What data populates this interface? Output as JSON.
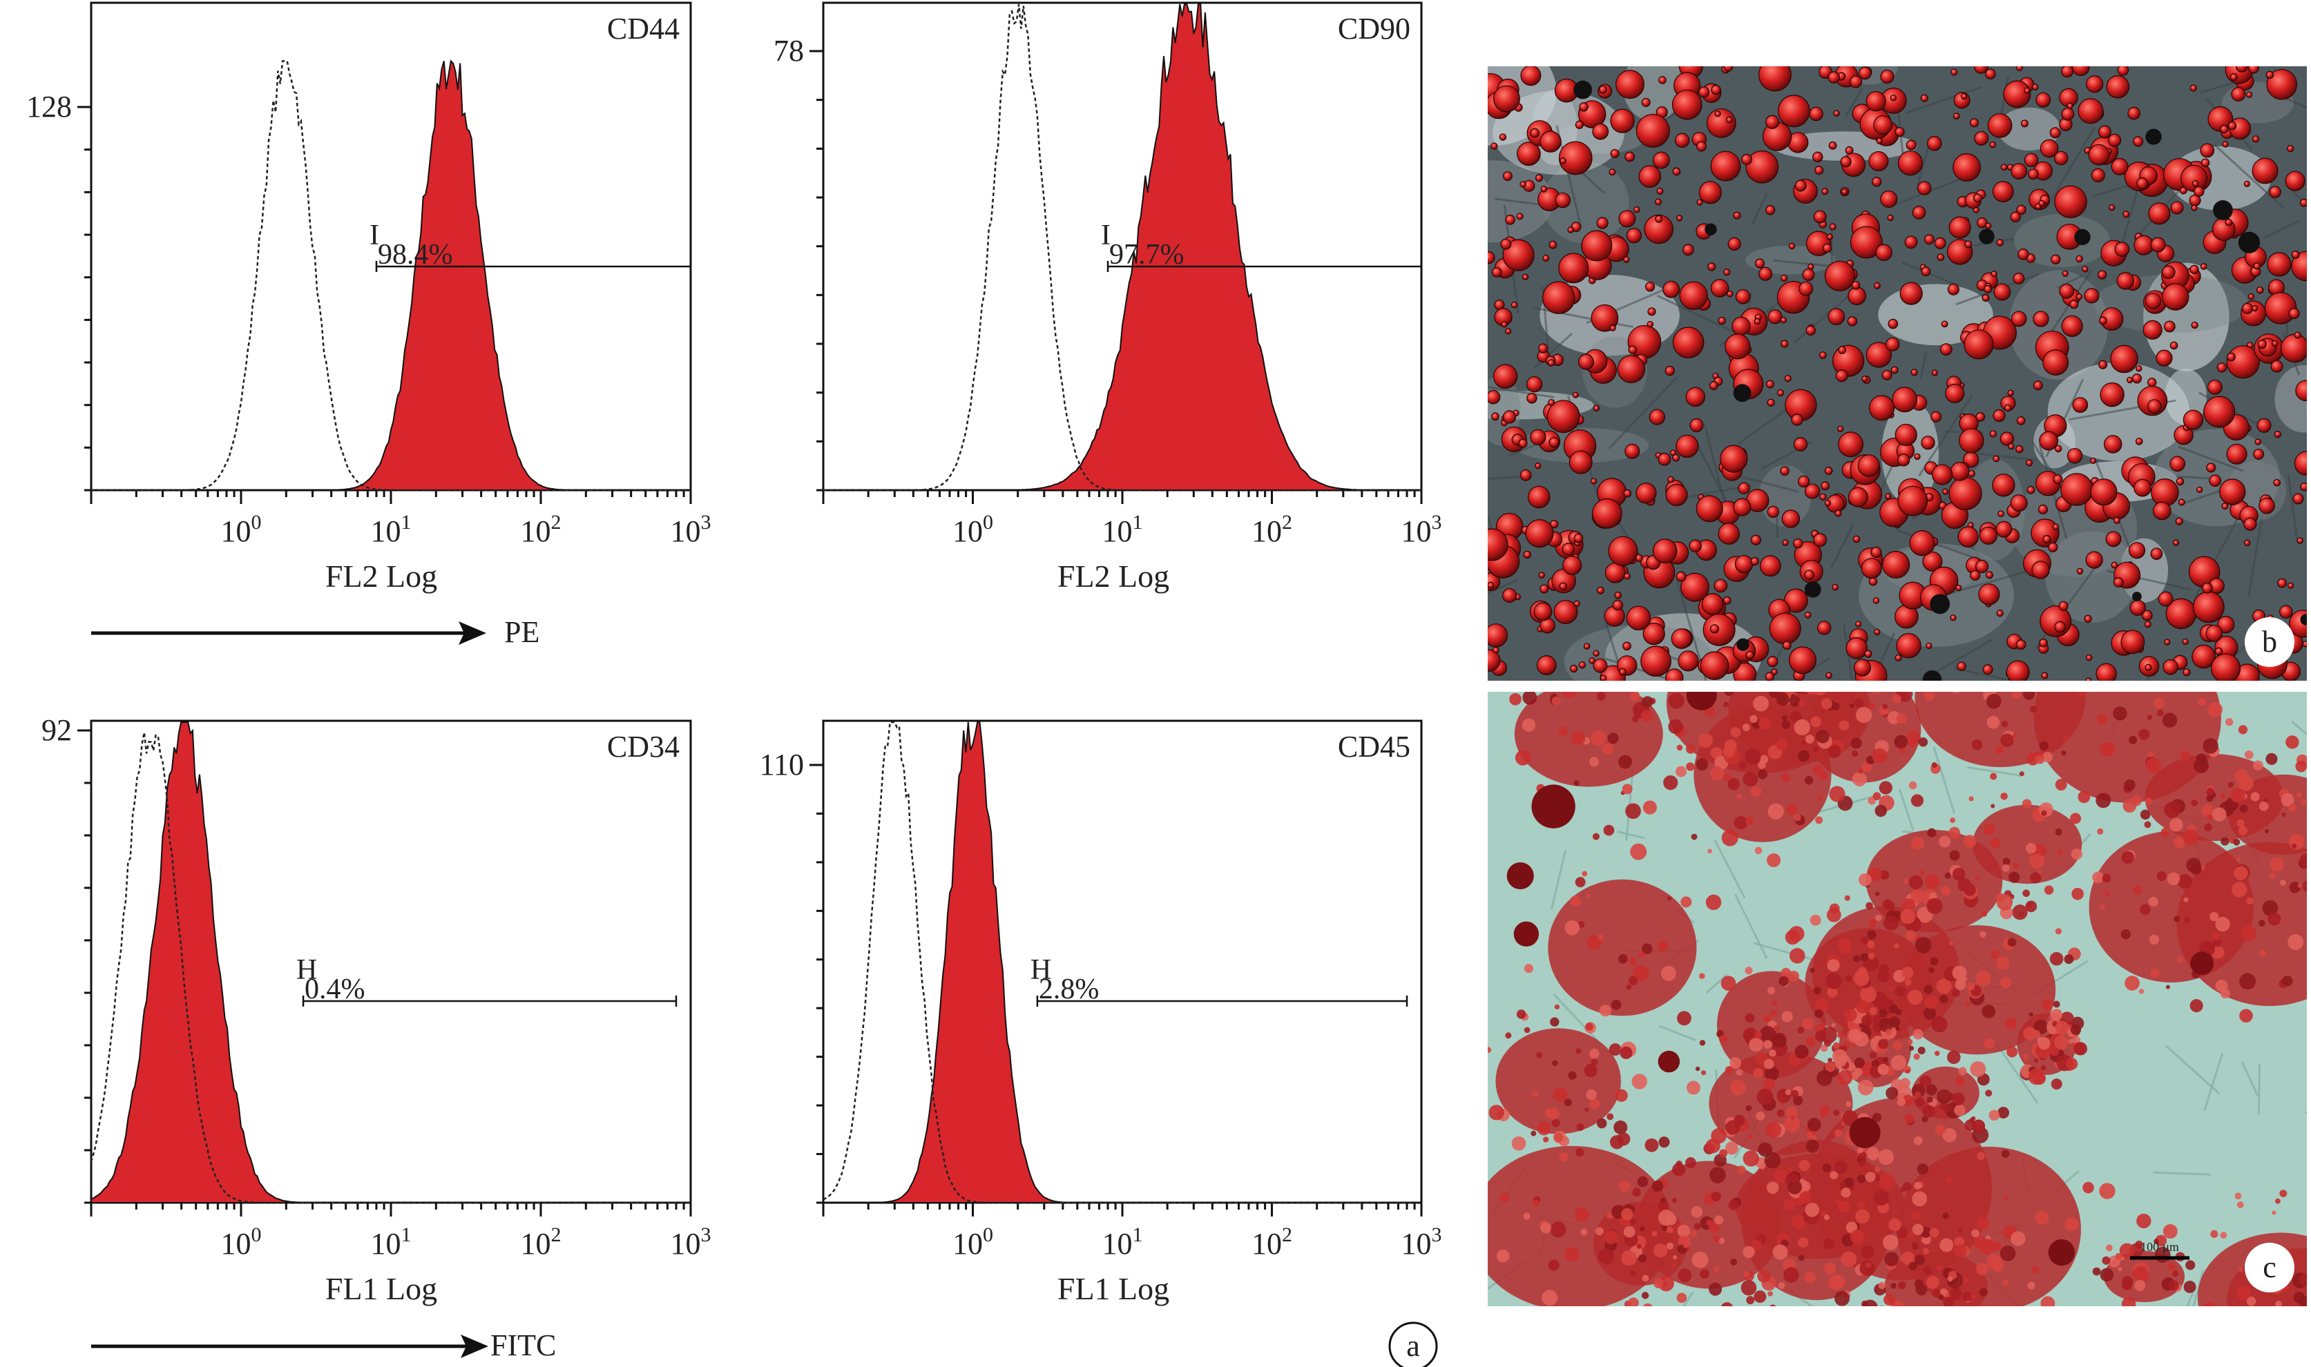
{
  "panel_label_a": "a",
  "panel_label_b": "b",
  "panel_label_c": "c",
  "scale_bar_text": "100 µm",
  "axis_arrows": [
    {
      "label": "PE"
    },
    {
      "label": "FITC"
    }
  ],
  "colors": {
    "stained": "#d8262c",
    "isotype": "#222222"
  },
  "chart_data": [
    {
      "type": "area",
      "marker": "CD44",
      "scale": "log",
      "xlim": [
        0.1,
        1000
      ],
      "xlabel": "FL2 Log",
      "xtick_base": "10",
      "xticks": [
        {
          "exp": "0",
          "v": 1
        },
        {
          "exp": "1",
          "v": 10
        },
        {
          "exp": "2",
          "v": 100
        },
        {
          "exp": "3",
          "v": 1000
        }
      ],
      "ymax_label": "128",
      "ymax": 128,
      "gate": {
        "name": "I",
        "percent": "98.4%",
        "start": 8,
        "end": 1000
      },
      "isotype": {
        "peak_x": 2,
        "sigma_decades": 0.17,
        "height": 143
      },
      "stained": {
        "peak_x": 25,
        "sigma_decades": 0.2,
        "height": 143
      }
    },
    {
      "type": "area",
      "marker": "CD90",
      "scale": "log",
      "xlim": [
        0.1,
        1000
      ],
      "xlabel": "FL2 Log",
      "xtick_base": "10",
      "xticks": [
        {
          "exp": "0",
          "v": 1
        },
        {
          "exp": "1",
          "v": 10
        },
        {
          "exp": "2",
          "v": 100
        },
        {
          "exp": "3",
          "v": 1000
        }
      ],
      "ymax_label": "78",
      "ymax": 78,
      "gate": {
        "name": "I",
        "percent": "97.7%",
        "start": 8,
        "end": 1000
      },
      "isotype": {
        "peak_x": 2,
        "sigma_decades": 0.17,
        "height": 86
      },
      "stained": {
        "peak_x": 28,
        "sigma_decades": 0.3,
        "height": 86
      }
    },
    {
      "type": "area",
      "marker": "CD34",
      "scale": "log",
      "xlim": [
        0.1,
        1000
      ],
      "xlabel": "FL1 Log",
      "xtick_base": "10",
      "xticks": [
        {
          "exp": "0",
          "v": 1
        },
        {
          "exp": "1",
          "v": 10
        },
        {
          "exp": "2",
          "v": 100
        },
        {
          "exp": "3",
          "v": 1000
        }
      ],
      "ymax_label": "92",
      "ymax": 92,
      "gate": {
        "name": "H",
        "percent": "0.4%",
        "start": 2.6,
        "end": 800
      },
      "isotype": {
        "peak_x": 0.25,
        "sigma_decades": 0.18,
        "height": 92
      },
      "stained": {
        "peak_x": 0.42,
        "sigma_decades": 0.2,
        "height": 92
      }
    },
    {
      "type": "area",
      "marker": "CD45",
      "scale": "log",
      "xlim": [
        0.1,
        1000
      ],
      "xlabel": "FL1 Log",
      "xtick_base": "10",
      "xticks": [
        {
          "exp": "0",
          "v": 1
        },
        {
          "exp": "1",
          "v": 10
        },
        {
          "exp": "2",
          "v": 100
        },
        {
          "exp": "3",
          "v": 1000
        }
      ],
      "ymax_label": "110",
      "ymax": 110,
      "gate": {
        "name": "H",
        "percent": "2.8%",
        "start": 2.7,
        "end": 800
      },
      "isotype": {
        "peak_x": 0.3,
        "sigma_decades": 0.15,
        "height": 121
      },
      "stained": {
        "peak_x": 1.0,
        "sigma_decades": 0.16,
        "height": 121
      }
    }
  ]
}
